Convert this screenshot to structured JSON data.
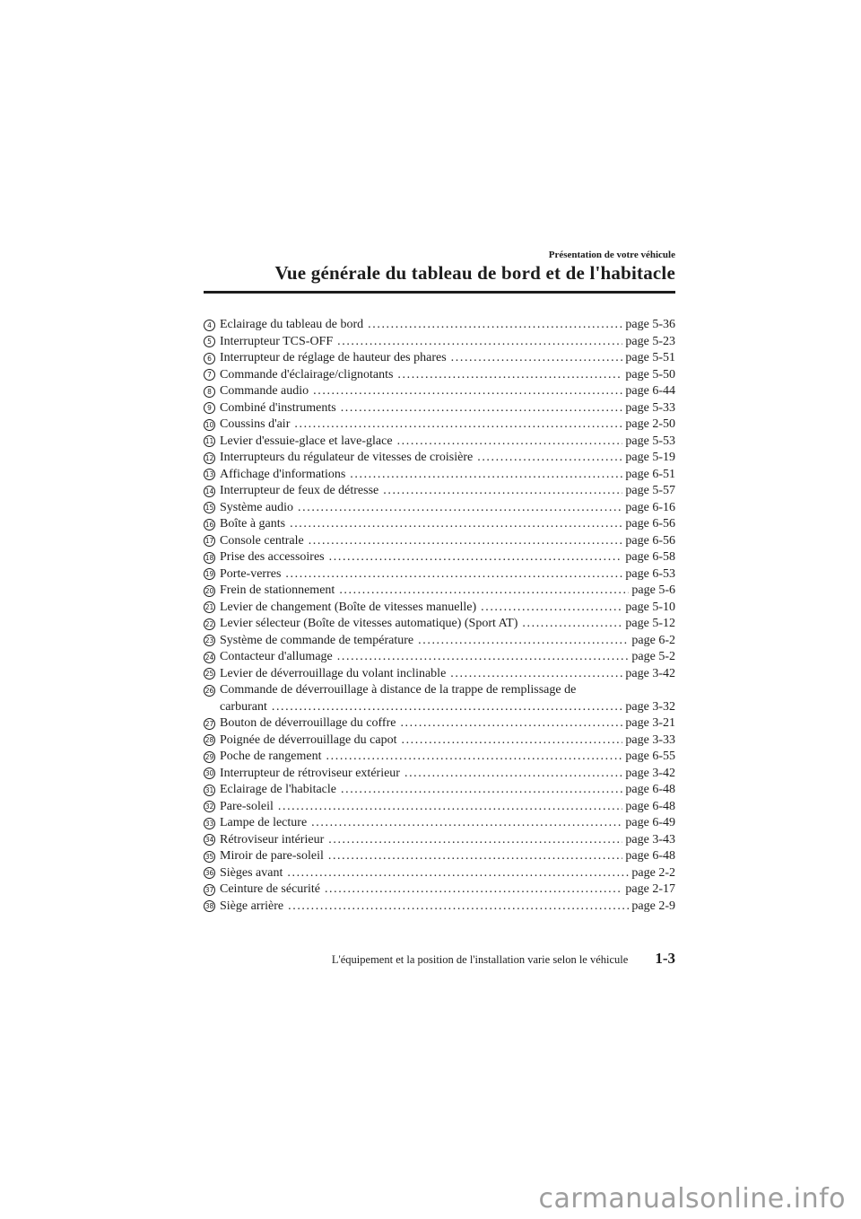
{
  "header": {
    "eyebrow": "Présentation de votre véhicule",
    "title": "Vue générale du tableau de bord et de l'habitacle"
  },
  "toc": {
    "items": [
      {
        "num": "4",
        "label": "Eclairage du tableau de bord",
        "page": "page 5-36"
      },
      {
        "num": "5",
        "label": "Interrupteur TCS-OFF",
        "page": "page 5-23"
      },
      {
        "num": "6",
        "label": "Interrupteur de réglage de hauteur des phares",
        "page": "page 5-51"
      },
      {
        "num": "7",
        "label": "Commande d'éclairage/clignotants",
        "page": "page 5-50"
      },
      {
        "num": "8",
        "label": "Commande audio",
        "page": "page 6-44"
      },
      {
        "num": "9",
        "label": "Combiné d'instruments",
        "page": "page 5-33"
      },
      {
        "num": "10",
        "label": "Coussins d'air",
        "page": "page 2-50"
      },
      {
        "num": "11",
        "label": "Levier d'essuie-glace et lave-glace",
        "page": "page 5-53"
      },
      {
        "num": "12",
        "label": "Interrupteurs du régulateur de vitesses de croisière",
        "page": "page 5-19"
      },
      {
        "num": "13",
        "label": "Affichage d'informations",
        "page": "page 6-51"
      },
      {
        "num": "14",
        "label": "Interrupteur de feux de détresse",
        "page": "page 5-57"
      },
      {
        "num": "15",
        "label": "Système audio",
        "page": "page 6-16"
      },
      {
        "num": "16",
        "label": "Boîte à gants",
        "page": "page 6-56"
      },
      {
        "num": "17",
        "label": "Console centrale",
        "page": "page 6-56"
      },
      {
        "num": "18",
        "label": "Prise des accessoires",
        "page": "page 6-58"
      },
      {
        "num": "19",
        "label": "Porte-verres",
        "page": "page 6-53"
      },
      {
        "num": "20",
        "label": "Frein de stationnement",
        "page": "page 5-6"
      },
      {
        "num": "21",
        "label": "Levier de changement (Boîte de vitesses manuelle)",
        "page": "page 5-10"
      },
      {
        "num": "22",
        "label": "Levier sélecteur (Boîte de vitesses automatique) (Sport AT)",
        "page": "page 5-12"
      },
      {
        "num": "23",
        "label": "Système de commande de température",
        "page": "page 6-2"
      },
      {
        "num": "24",
        "label": "Contacteur d'allumage",
        "page": "page 5-2"
      },
      {
        "num": "25",
        "label": "Levier de déverrouillage du volant inclinable",
        "page": "page 3-42"
      },
      {
        "num": "26",
        "label": "Commande de déverrouillage à distance de la trappe de remplissage de",
        "page": ""
      },
      {
        "num": "",
        "label": "carburant",
        "page": "page 3-32"
      },
      {
        "num": "27",
        "label": "Bouton de déverrouillage du coffre",
        "page": "page 3-21"
      },
      {
        "num": "28",
        "label": "Poignée de déverrouillage du capot",
        "page": "page 3-33"
      },
      {
        "num": "29",
        "label": "Poche de rangement",
        "page": "page 6-55"
      },
      {
        "num": "30",
        "label": "Interrupteur de rétroviseur extérieur",
        "page": "page 3-42"
      },
      {
        "num": "31",
        "label": "Eclairage de l'habitacle",
        "page": "page 6-48"
      },
      {
        "num": "32",
        "label": "Pare-soleil",
        "page": "page 6-48"
      },
      {
        "num": "33",
        "label": "Lampe de lecture",
        "page": "page 6-49"
      },
      {
        "num": "34",
        "label": "Rétroviseur intérieur",
        "page": "page 3-43"
      },
      {
        "num": "35",
        "label": "Miroir de pare-soleil",
        "page": "page 6-48"
      },
      {
        "num": "36",
        "label": "Sièges avant",
        "page": "page 2-2"
      },
      {
        "num": "37",
        "label": "Ceinture de sécurité",
        "page": "page 2-17"
      },
      {
        "num": "38",
        "label": "Siège arrière",
        "page": "page 2-9"
      }
    ]
  },
  "footer": {
    "note": "L'équipement et la position de l'installation varie selon le véhicule",
    "page_number": "1-3"
  },
  "watermark": {
    "text": "carmanualsonline.info"
  },
  "colors": {
    "text": "#1c1c1c",
    "rule": "#1c1c1c",
    "background": "#ffffff",
    "watermark": "#9e9e9e"
  }
}
